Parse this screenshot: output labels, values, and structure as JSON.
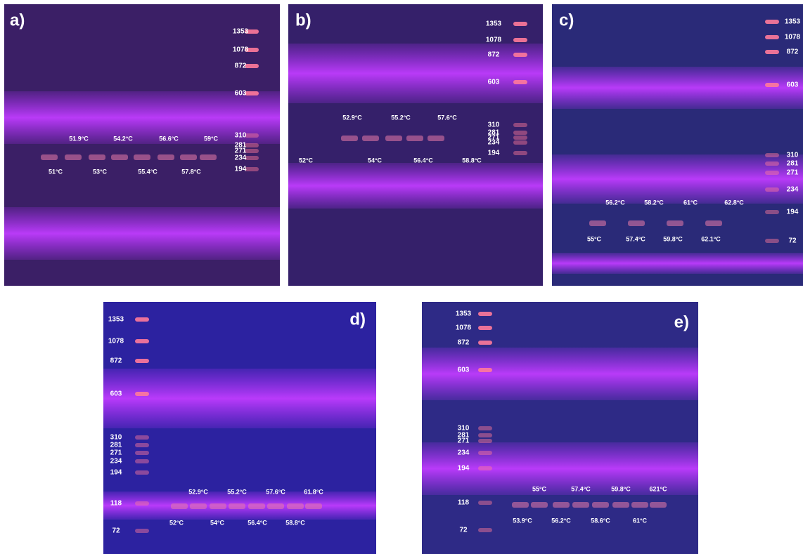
{
  "panels": [
    {
      "label": "a)",
      "ladder": [
        "1353",
        "1078",
        "872",
        "603",
        "310",
        "281",
        "271",
        "234",
        "194"
      ],
      "temps_top": [
        "51.9°C",
        "54.2°C",
        "56.6°C",
        "59°C"
      ],
      "temps_bottom": [
        "51°C",
        "53°C",
        "55.4°C",
        "57.8°C"
      ]
    },
    {
      "label": "b)",
      "ladder": [
        "1353",
        "1078",
        "872",
        "603",
        "310",
        "281",
        "271",
        "234",
        "194"
      ],
      "temps_top": [
        "52.9°C",
        "55.2°C",
        "57.6°C"
      ],
      "temps_bottom": [
        "52°C",
        "54°C",
        "56.4°C",
        "58.8°C"
      ]
    },
    {
      "label": "c)",
      "ladder": [
        "1353",
        "1078",
        "872",
        "603",
        "310",
        "281",
        "271",
        "234",
        "194",
        "72"
      ],
      "temps_top": [
        "56.2°C",
        "58.2°C",
        "61°C",
        "62.8°C"
      ],
      "temps_bottom": [
        "55°C",
        "57.4°C",
        "59.8°C",
        "62.1°C"
      ]
    },
    {
      "label": "d)",
      "ladder": [
        "1353",
        "1078",
        "872",
        "603",
        "310",
        "281",
        "271",
        "234",
        "194",
        "118",
        "72"
      ],
      "temps_top": [
        "52.9°C",
        "55.2°C",
        "57.6°C",
        "61.8°C"
      ],
      "temps_bottom": [
        "52°C",
        "54°C",
        "56.4°C",
        "58.8°C"
      ]
    },
    {
      "label": "e)",
      "ladder": [
        "1353",
        "1078",
        "872",
        "603",
        "310",
        "281",
        "271",
        "234",
        "194",
        "118",
        "72"
      ],
      "temps_top": [
        "55°C",
        "57.4°C",
        "59.8°C",
        "621°C"
      ],
      "temps_bottom": [
        "53.9°C",
        "56.2°C",
        "58.6°C",
        "61°C"
      ]
    }
  ]
}
